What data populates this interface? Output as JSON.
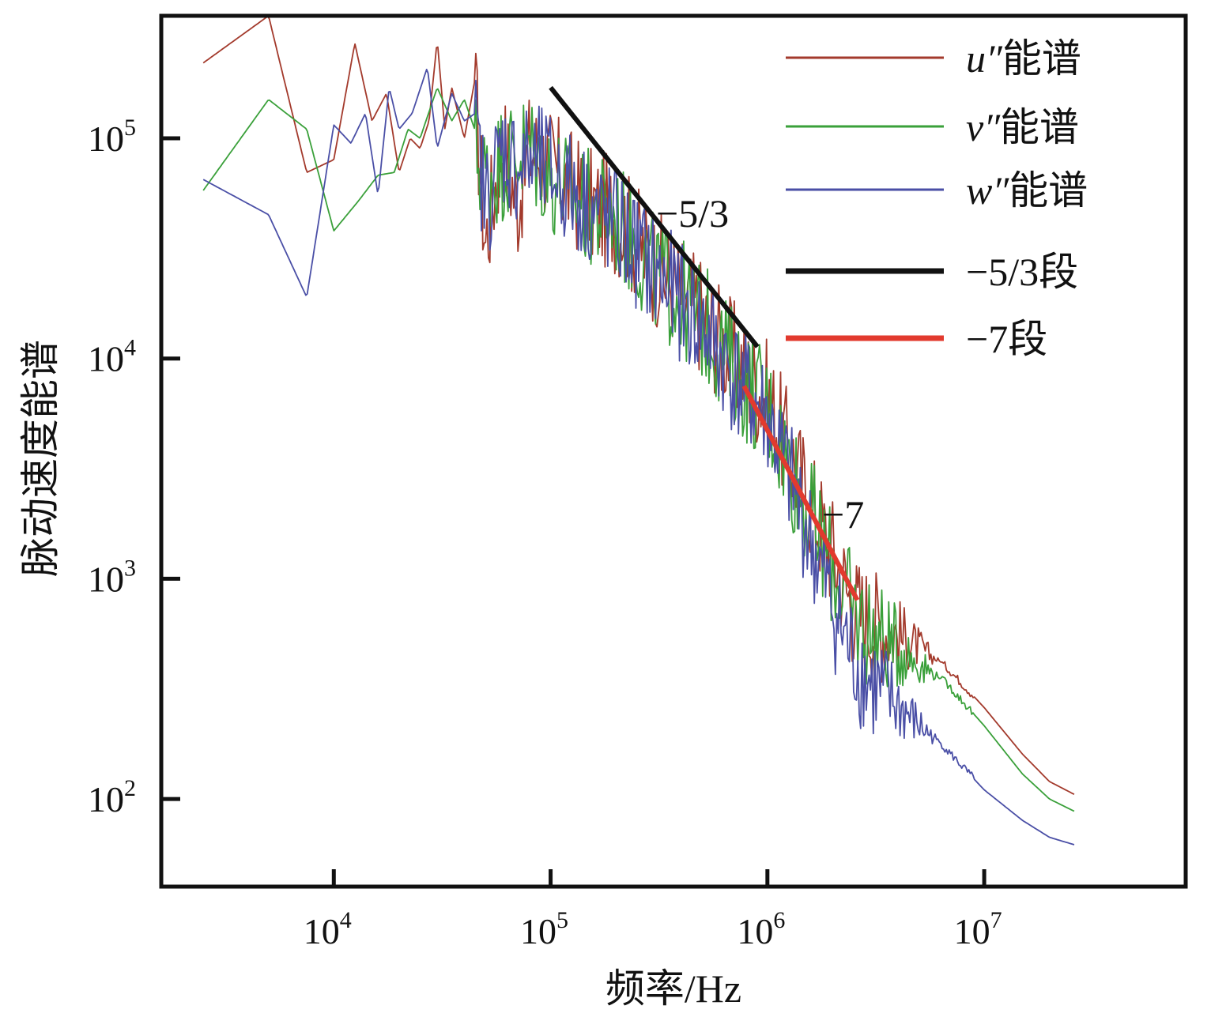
{
  "chart_data": {
    "type": "line",
    "xscale": "log",
    "yscale": "log",
    "xlabel": "频率/Hz",
    "ylabel": "脉动速度能谱",
    "xlim": [
      1600,
      85000000
    ],
    "ylim": [
      40,
      360000
    ],
    "xticks": [
      {
        "value": 10000,
        "base": "10",
        "exp": "4"
      },
      {
        "value": 100000,
        "base": "10",
        "exp": "5"
      },
      {
        "value": 1000000,
        "base": "10",
        "exp": "6"
      },
      {
        "value": 10000000,
        "base": "10",
        "exp": "7"
      }
    ],
    "yticks": [
      {
        "value": 100,
        "base": "10",
        "exp": "2"
      },
      {
        "value": 1000,
        "base": "10",
        "exp": "3"
      },
      {
        "value": 10000,
        "base": "10",
        "exp": "4"
      },
      {
        "value": 100000,
        "base": "10",
        "exp": "5"
      }
    ],
    "series": [
      {
        "name": "u″能谱",
        "color": "#a33a2c",
        "x": [
          2500,
          5000,
          7500,
          10000,
          12500,
          15000,
          17500,
          20000,
          22500,
          25000,
          27500,
          30000,
          32500,
          35000,
          40000,
          45000,
          50000,
          60000,
          70000,
          80000,
          100000,
          150000,
          200000,
          300000,
          500000,
          700000,
          1000000,
          1500000,
          2000000,
          2500000,
          3000000,
          4000000,
          5000000,
          7000000,
          10000000,
          15000000,
          20000000,
          26000000
        ],
        "y": [
          220000,
          360000,
          70000,
          80000,
          270000,
          120000,
          160000,
          70000,
          100000,
          90000,
          120000,
          280000,
          110000,
          170000,
          100000,
          190000,
          40000,
          120000,
          60000,
          110000,
          90000,
          60000,
          55000,
          32000,
          19000,
          12000,
          8000,
          3000,
          1600,
          880,
          780,
          630,
          520,
          380,
          260,
          160,
          120,
          105
        ]
      },
      {
        "name": "v″能谱",
        "color": "#3aa03a",
        "x": [
          2500,
          5000,
          7500,
          10000,
          13000,
          16000,
          19000,
          22000,
          25000,
          30000,
          35000,
          40000,
          50000,
          60000,
          80000,
          100000,
          150000,
          200000,
          300000,
          500000,
          700000,
          1000000,
          1500000,
          2000000,
          2500000,
          3000000,
          4000000,
          5000000,
          7000000,
          10000000,
          15000000,
          20000000,
          26000000
        ],
        "y": [
          58000,
          150000,
          110000,
          38000,
          52000,
          68000,
          70000,
          110000,
          100000,
          170000,
          120000,
          150000,
          80000,
          95000,
          110000,
          80000,
          58000,
          52000,
          30000,
          18000,
          11000,
          7200,
          2600,
          1350,
          830,
          690,
          550,
          440,
          320,
          215,
          130,
          100,
          88
        ]
      },
      {
        "name": "w″能谱",
        "color": "#4a4fa6",
        "x": [
          2500,
          5000,
          7500,
          10000,
          12000,
          14000,
          16000,
          18000,
          20000,
          23000,
          27000,
          30000,
          35000,
          40000,
          45000,
          50000,
          60000,
          70000,
          80000,
          100000,
          150000,
          200000,
          300000,
          500000,
          700000,
          1000000,
          1500000,
          2000000,
          2500000,
          3000000,
          4000000,
          5000000,
          7000000,
          10000000,
          15000000,
          20000000,
          26000000
        ],
        "y": [
          65000,
          45000,
          19000,
          115000,
          95000,
          130000,
          55000,
          170000,
          110000,
          130000,
          210000,
          90000,
          160000,
          120000,
          130000,
          60000,
          110000,
          90000,
          95000,
          85000,
          60000,
          48000,
          30000,
          17000,
          10000,
          6500,
          2100,
          900,
          520,
          400,
          300,
          230,
          160,
          110,
          80,
          67,
          62
        ]
      }
    ],
    "reference_lines": [
      {
        "name": "−5/3段",
        "color": "#111111",
        "slope_label": "−5/3",
        "x": [
          100000,
          900000
        ],
        "y": [
          170000,
          11300
        ]
      },
      {
        "name": "−7段",
        "color": "#e23a2e",
        "slope_label": "−7",
        "x": [
          780000,
          2600000
        ],
        "y": [
          7500,
          800
        ]
      }
    ],
    "legend": {
      "position": "top-right",
      "entries": [
        {
          "label": "u″能谱",
          "var": "u″",
          "suffix": "能谱",
          "color": "#a33a2c",
          "kind": "thin"
        },
        {
          "label": "v″能谱",
          "var": "v″",
          "suffix": "能谱",
          "color": "#3aa03a",
          "kind": "thin"
        },
        {
          "label": "w″能谱",
          "var": "w″",
          "suffix": "能谱",
          "color": "#4a4fa6",
          "kind": "thin"
        },
        {
          "label": "−5/3段",
          "var": "",
          "suffix": "−5/3段",
          "color": "#111111",
          "kind": "thick"
        },
        {
          "label": "−7段",
          "var": "",
          "suffix": "−7段",
          "color": "#e23a2e",
          "kind": "thick"
        }
      ]
    }
  }
}
